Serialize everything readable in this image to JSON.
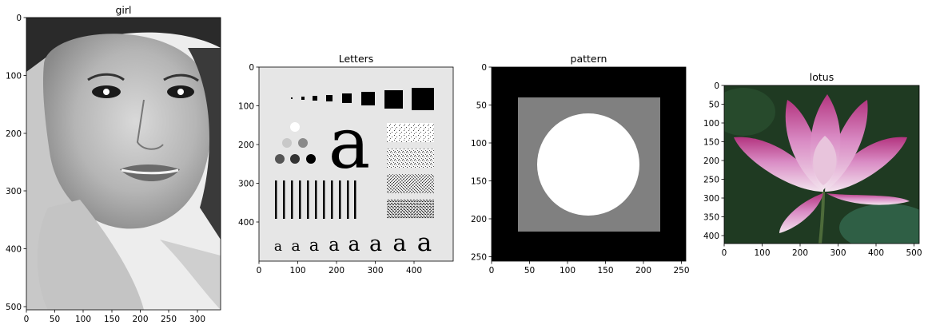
{
  "panels": [
    {
      "key": "girl",
      "title": "girl",
      "xticks": [
        "0",
        "50",
        "100",
        "150",
        "200",
        "250",
        "300"
      ],
      "yticks": [
        "0",
        "100",
        "200",
        "300",
        "400",
        "500"
      ]
    },
    {
      "key": "letters",
      "title": "Letters",
      "xticks": [
        "0",
        "100",
        "200",
        "300",
        "400"
      ],
      "yticks": [
        "0",
        "100",
        "200",
        "300",
        "400"
      ],
      "big_glyph": "a",
      "small_glyph": "a"
    },
    {
      "key": "pattern",
      "title": "pattern",
      "xticks": [
        "0",
        "50",
        "100",
        "150",
        "200",
        "250"
      ],
      "yticks": [
        "0",
        "50",
        "100",
        "150",
        "200",
        "250"
      ]
    },
    {
      "key": "lotus",
      "title": "lotus",
      "xticks": [
        "0",
        "100",
        "200",
        "300",
        "400",
        "500"
      ],
      "yticks": [
        "0",
        "50",
        "100",
        "150",
        "200",
        "250",
        "300",
        "350",
        "400"
      ]
    }
  ],
  "colors": {
    "letters_bg": "#e6e6e6",
    "pattern_outer": "#000000",
    "pattern_square": "#808080",
    "pattern_circle": "#ffffff",
    "lotus_bg": "#1f3a22",
    "lotus_petal": "#d98bc4",
    "lotus_petal_tip": "#b3347f",
    "lotus_center": "#e8c4dc"
  }
}
